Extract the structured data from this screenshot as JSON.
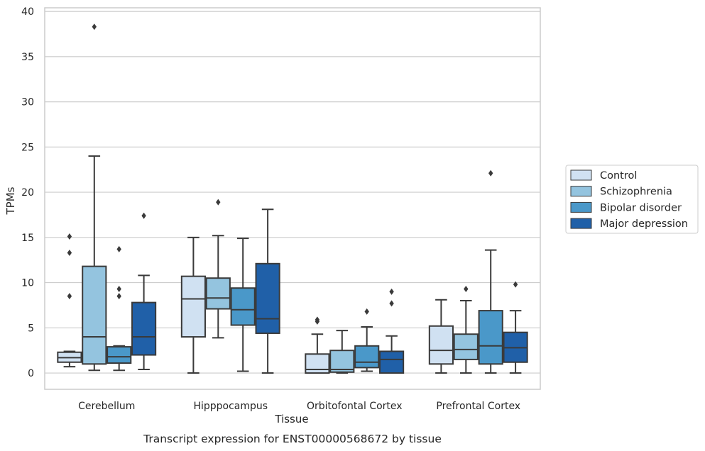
{
  "chart_data": {
    "type": "box",
    "caption": "Transcript expression for ENST00000568672 by tissue",
    "xlabel": "Tissue",
    "ylabel": "TPMs",
    "ylim": [
      -1.8,
      40.4
    ],
    "yticks": [
      0,
      5,
      10,
      15,
      20,
      25,
      30,
      35,
      40
    ],
    "grid": "horizontal",
    "legend_position": "right",
    "categories": [
      "Cerebellum",
      "Hipppocampus",
      "Orbitofontal Cortex",
      "Prefrontal Cortex"
    ],
    "series": [
      {
        "name": "Control",
        "color": "#d0e1f2",
        "boxes": [
          {
            "min": 0.7,
            "q1": 1.2,
            "median": 1.7,
            "q3": 2.3,
            "max": 2.4,
            "outliers": [
              8.5,
              13.3,
              15.1
            ]
          },
          {
            "min": 0.0,
            "q1": 4.0,
            "median": 8.2,
            "q3": 10.7,
            "max": 15.0,
            "outliers": []
          },
          {
            "min": 0.0,
            "q1": 0.0,
            "median": 0.4,
            "q3": 2.1,
            "max": 4.3,
            "outliers": [
              5.7,
              5.9
            ]
          },
          {
            "min": 0.0,
            "q1": 1.0,
            "median": 2.5,
            "q3": 5.2,
            "max": 8.1,
            "outliers": []
          }
        ]
      },
      {
        "name": "Schizophrenia",
        "color": "#94c4df",
        "boxes": [
          {
            "min": 0.3,
            "q1": 1.0,
            "median": 4.0,
            "q3": 11.8,
            "max": 24.0,
            "outliers": [
              38.3
            ]
          },
          {
            "min": 3.9,
            "q1": 7.1,
            "median": 8.3,
            "q3": 10.5,
            "max": 15.2,
            "outliers": [
              18.9
            ]
          },
          {
            "min": 0.0,
            "q1": 0.1,
            "median": 0.4,
            "q3": 2.5,
            "max": 4.7,
            "outliers": []
          },
          {
            "min": 0.0,
            "q1": 1.5,
            "median": 2.6,
            "q3": 4.3,
            "max": 8.0,
            "outliers": [
              9.3
            ]
          }
        ]
      },
      {
        "name": "Bipolar disorder",
        "color": "#4a98c9",
        "boxes": [
          {
            "min": 0.3,
            "q1": 1.1,
            "median": 1.8,
            "q3": 2.9,
            "max": 3.0,
            "outliers": [
              8.5,
              9.3,
              13.7
            ]
          },
          {
            "min": 0.2,
            "q1": 5.3,
            "median": 7.0,
            "q3": 9.4,
            "max": 14.9,
            "outliers": []
          },
          {
            "min": 0.2,
            "q1": 0.6,
            "median": 1.2,
            "q3": 3.0,
            "max": 5.1,
            "outliers": [
              6.8
            ]
          },
          {
            "min": 0.0,
            "q1": 1.0,
            "median": 3.0,
            "q3": 6.9,
            "max": 13.6,
            "outliers": [
              22.1
            ]
          }
        ]
      },
      {
        "name": "Major depression",
        "color": "#2060a8",
        "boxes": [
          {
            "min": 0.4,
            "q1": 2.0,
            "median": 4.0,
            "q3": 7.8,
            "max": 10.8,
            "outliers": [
              17.4
            ]
          },
          {
            "min": 0.0,
            "q1": 4.4,
            "median": 6.0,
            "q3": 12.1,
            "max": 18.1,
            "outliers": []
          },
          {
            "min": 0.0,
            "q1": 0.0,
            "median": 1.5,
            "q3": 2.4,
            "max": 4.1,
            "outliers": [
              7.7,
              9.0
            ]
          },
          {
            "min": 0.0,
            "q1": 1.2,
            "median": 2.8,
            "q3": 4.5,
            "max": 6.9,
            "outliers": [
              9.8
            ]
          }
        ]
      }
    ]
  }
}
